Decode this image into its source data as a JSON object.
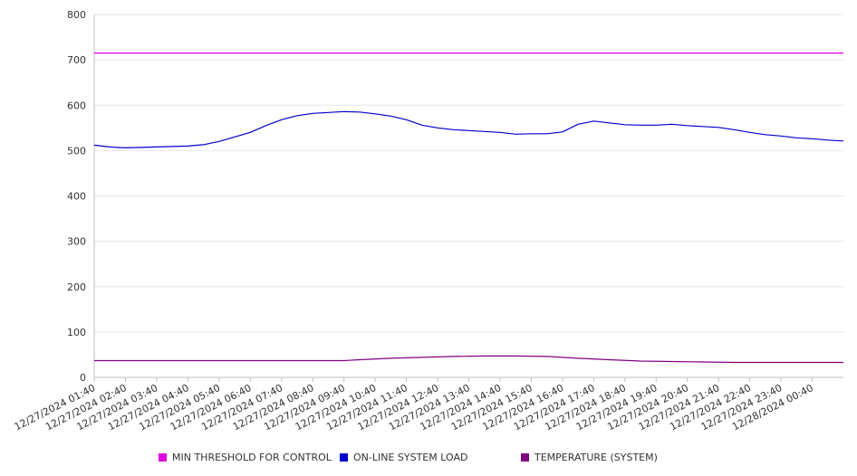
{
  "chart_data": {
    "type": "line",
    "title": "",
    "xlabel": "",
    "ylabel": "",
    "ylim": [
      0,
      800
    ],
    "y_ticks": [
      "0",
      "100",
      "200",
      "300",
      "400",
      "500",
      "600",
      "700",
      "800"
    ],
    "grid": "horizontal",
    "legend_position": "bottom",
    "x": [
      "12/27/2024 01:40",
      "12/27/2024 02:40",
      "12/27/2024 03:40",
      "12/27/2024 04:40",
      "12/27/2024 05:40",
      "12/27/2024 06:40",
      "12/27/2024 07:40",
      "12/27/2024 08:40",
      "12/27/2024 09:40",
      "12/27/2024 10:40",
      "12/27/2024 11:40",
      "12/27/2024 12:40",
      "12/27/2024 13:40",
      "12/27/2024 14:40",
      "12/27/2024 15:40",
      "12/27/2024 16:40",
      "12/27/2024 17:40",
      "12/27/2024 18:40",
      "12/27/2024 19:40",
      "12/27/2024 20:40",
      "12/27/2024 21:40",
      "12/27/2024 22:40",
      "12/27/2024 23:40",
      "12/28/2024 00:40"
    ],
    "x_end": "12/28/2024 01:40",
    "series": [
      {
        "name": "MIN THRESHOLD FOR CONTROL",
        "color": "#e000e0",
        "points": [
          [
            "12/27/2024 01:40",
            715
          ],
          [
            "12/28/2024 01:40",
            715
          ]
        ]
      },
      {
        "name": "ON-LINE SYSTEM LOAD",
        "color": "#0000cc",
        "points": [
          [
            "12/27/2024 01:40",
            512
          ],
          [
            "12/27/2024 02:10",
            508
          ],
          [
            "12/27/2024 02:40",
            506
          ],
          [
            "12/27/2024 03:10",
            507
          ],
          [
            "12/27/2024 03:40",
            508
          ],
          [
            "12/27/2024 04:10",
            509
          ],
          [
            "12/27/2024 04:40",
            510
          ],
          [
            "12/27/2024 05:10",
            513
          ],
          [
            "12/27/2024 05:40",
            520
          ],
          [
            "12/27/2024 06:10",
            530
          ],
          [
            "12/27/2024 06:40",
            540
          ],
          [
            "12/27/2024 07:10",
            555
          ],
          [
            "12/27/2024 07:40",
            568
          ],
          [
            "12/27/2024 08:10",
            577
          ],
          [
            "12/27/2024 08:40",
            582
          ],
          [
            "12/27/2024 09:10",
            584
          ],
          [
            "12/27/2024 09:40",
            586
          ],
          [
            "12/27/2024 10:10",
            585
          ],
          [
            "12/27/2024 10:40",
            581
          ],
          [
            "12/27/2024 11:10",
            576
          ],
          [
            "12/27/2024 11:40",
            568
          ],
          [
            "12/27/2024 12:10",
            556
          ],
          [
            "12/27/2024 12:40",
            550
          ],
          [
            "12/27/2024 13:10",
            546
          ],
          [
            "12/27/2024 13:40",
            544
          ],
          [
            "12/27/2024 14:10",
            542
          ],
          [
            "12/27/2024 14:40",
            540
          ],
          [
            "12/27/2024 15:10",
            536
          ],
          [
            "12/27/2024 15:40",
            537
          ],
          [
            "12/27/2024 16:10",
            537
          ],
          [
            "12/27/2024 16:40",
            541
          ],
          [
            "12/27/2024 17:10",
            558
          ],
          [
            "12/27/2024 17:40",
            565
          ],
          [
            "12/27/2024 18:10",
            561
          ],
          [
            "12/27/2024 18:40",
            557
          ],
          [
            "12/27/2024 19:10",
            556
          ],
          [
            "12/27/2024 19:40",
            556
          ],
          [
            "12/27/2024 20:10",
            558
          ],
          [
            "12/27/2024 20:40",
            555
          ],
          [
            "12/27/2024 21:10",
            553
          ],
          [
            "12/27/2024 21:40",
            551
          ],
          [
            "12/27/2024 22:10",
            546
          ],
          [
            "12/27/2024 22:40",
            540
          ],
          [
            "12/27/2024 23:10",
            535
          ],
          [
            "12/27/2024 23:40",
            532
          ],
          [
            "12/28/2024 00:10",
            528
          ],
          [
            "12/28/2024 00:40",
            526
          ],
          [
            "12/28/2024 01:10",
            523
          ],
          [
            "12/28/2024 01:40",
            521
          ]
        ]
      },
      {
        "name": "TEMPERATURE (SYSTEM)",
        "color": "#800080",
        "points": [
          [
            "12/27/2024 01:40",
            37
          ],
          [
            "12/27/2024 09:40",
            37
          ],
          [
            "12/27/2024 10:10",
            39
          ],
          [
            "12/27/2024 11:10",
            42
          ],
          [
            "12/27/2024 12:10",
            44
          ],
          [
            "12/27/2024 13:10",
            46
          ],
          [
            "12/27/2024 14:10",
            47
          ],
          [
            "12/27/2024 15:10",
            47
          ],
          [
            "12/27/2024 16:10",
            46
          ],
          [
            "12/27/2024 17:10",
            42
          ],
          [
            "12/27/2024 18:10",
            39
          ],
          [
            "12/27/2024 19:10",
            36
          ],
          [
            "12/27/2024 20:10",
            35
          ],
          [
            "12/27/2024 21:10",
            34
          ],
          [
            "12/27/2024 22:10",
            33
          ],
          [
            "12/27/2024 23:10",
            33
          ],
          [
            "12/28/2024 01:40",
            33
          ]
        ]
      }
    ]
  }
}
